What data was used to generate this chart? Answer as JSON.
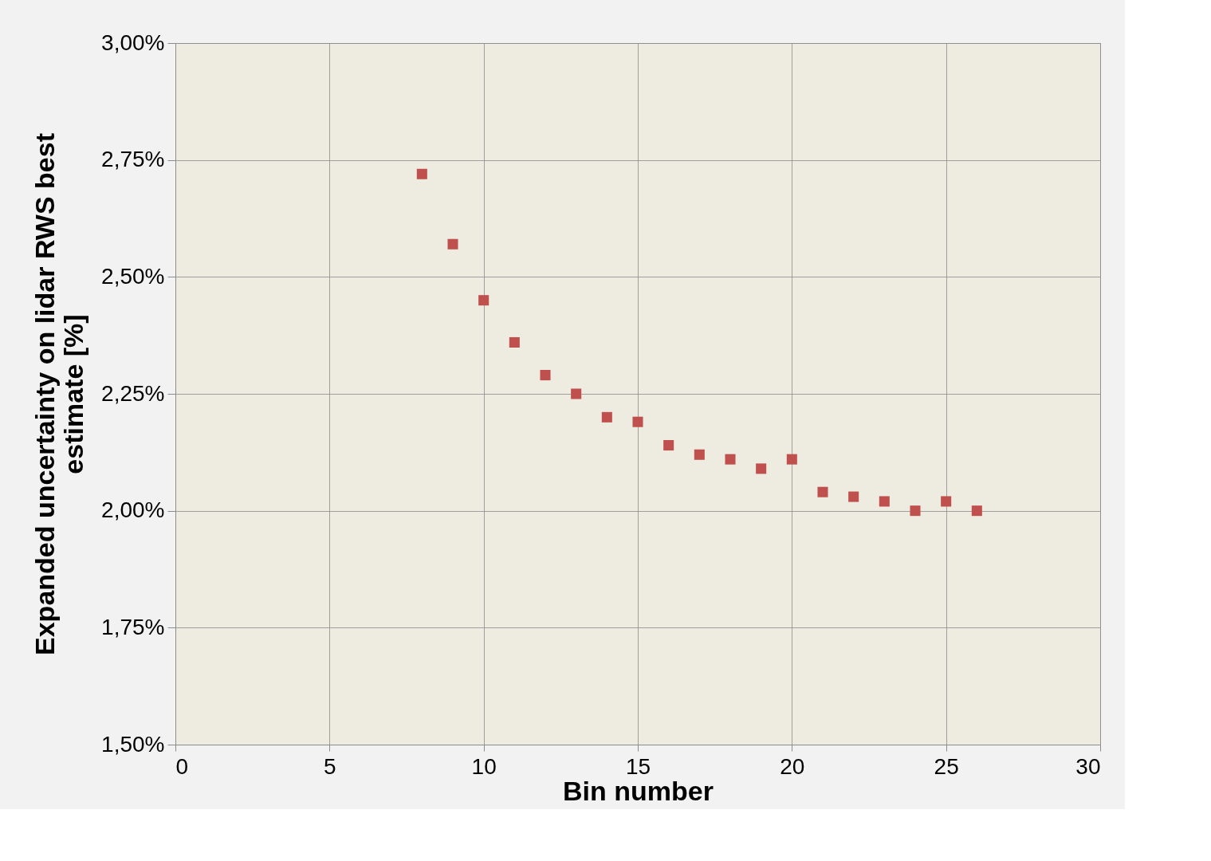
{
  "chart_data": {
    "type": "scatter",
    "xlabel": "Bin number",
    "ylabel": "Expanded uncertainty on lidar RWS best estimate [%]",
    "x": [
      8,
      9,
      10,
      11,
      12,
      13,
      14,
      15,
      16,
      17,
      18,
      19,
      20,
      21,
      22,
      23,
      24,
      25,
      26
    ],
    "series": [
      {
        "color": "#c0504d",
        "values": [
          2.72,
          2.57,
          2.45,
          2.36,
          2.29,
          2.25,
          2.2,
          2.19,
          2.14,
          2.12,
          2.11,
          2.09,
          2.11,
          2.04,
          2.03,
          2.02,
          2.0,
          2.02,
          2.0
        ]
      }
    ],
    "xlim": [
      0,
      30
    ],
    "xticks": [
      0,
      5,
      10,
      15,
      20,
      25,
      30
    ],
    "ylim": [
      1.5,
      3.0
    ],
    "yticks": [
      {
        "value": 1.5,
        "label": "1,50%"
      },
      {
        "value": 1.75,
        "label": "1,75%"
      },
      {
        "value": 2.0,
        "label": "2,00%"
      },
      {
        "value": 2.25,
        "label": "2,25%"
      },
      {
        "value": 2.5,
        "label": "2,50%"
      },
      {
        "value": 2.75,
        "label": "2,75%"
      },
      {
        "value": 3.0,
        "label": "3,00%"
      }
    ],
    "marker": "square",
    "grid": true
  }
}
